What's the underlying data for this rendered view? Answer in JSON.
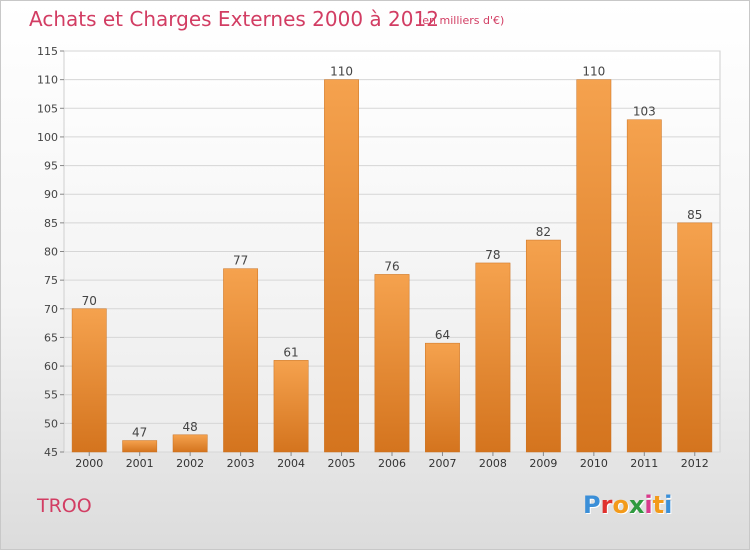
{
  "header": {
    "title": "Achats et Charges Externes 2000 à 2012",
    "subtitle": "(en milliers d'€)"
  },
  "footer": {
    "city": "TROO",
    "logo": "Proxiti",
    "logo_colors": [
      "#3b8fd8",
      "#e0312d",
      "#f39a1a",
      "#2f9a3f",
      "#d93a8c",
      "#f39a1a",
      "#3b8fd8"
    ]
  },
  "chart_data": {
    "type": "bar",
    "categories": [
      "2000",
      "2001",
      "2002",
      "2003",
      "2004",
      "2005",
      "2006",
      "2007",
      "2008",
      "2009",
      "2010",
      "2011",
      "2012"
    ],
    "values": [
      70,
      47,
      48,
      77,
      61,
      110,
      76,
      64,
      78,
      82,
      110,
      103,
      85
    ],
    "data_labels": [
      "70",
      "47",
      "48",
      "77",
      "61",
      "110",
      "76",
      "64",
      "78",
      "82",
      "110",
      "103",
      "85"
    ],
    "title": "Achats et Charges Externes 2000 à 2012",
    "xlabel": "",
    "ylabel": "",
    "ylim": [
      45,
      115
    ],
    "yticks": [
      45,
      50,
      55,
      60,
      65,
      70,
      75,
      80,
      85,
      90,
      95,
      100,
      105,
      110,
      115
    ],
    "grid": true,
    "bar_color_top": "#f5a24e",
    "bar_color_bottom": "#d4741e"
  }
}
